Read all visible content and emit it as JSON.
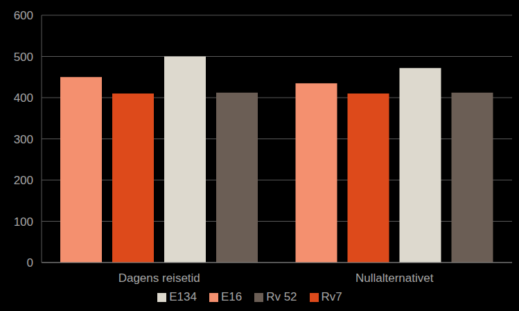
{
  "chart_data": {
    "type": "bar",
    "categories": [
      "Dagens reisetid",
      "Nullalternativet"
    ],
    "series": [
      {
        "name": "E16",
        "color": "#F4906F",
        "values": [
          450,
          435
        ]
      },
      {
        "name": "Rv7",
        "color": "#DD4A1B",
        "values": [
          410,
          410
        ]
      },
      {
        "name": "E134",
        "color": "#DDD9CE",
        "values": [
          500,
          472
        ]
      },
      {
        "name": "Rv 52",
        "color": "#6B5E55",
        "values": [
          412,
          412
        ]
      }
    ],
    "ylim": [
      0,
      600
    ],
    "yticks": [
      0,
      100,
      200,
      300,
      400,
      500,
      600
    ],
    "grid": true,
    "legend": "bottom"
  }
}
